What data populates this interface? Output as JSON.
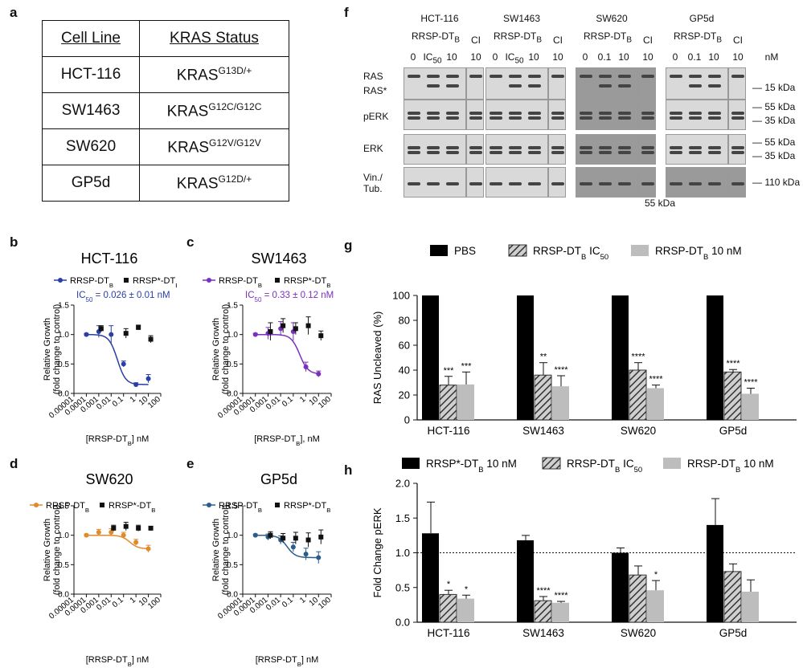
{
  "panels": {
    "a": "a",
    "b": "b",
    "c": "c",
    "d": "d",
    "e": "e",
    "f": "f",
    "g": "g",
    "h": "h"
  },
  "table": {
    "headers": [
      "Cell Line",
      "KRAS Status"
    ],
    "rows": [
      {
        "cell": "HCT-116",
        "status_base": "KRAS",
        "status_sup": "G13D/+"
      },
      {
        "cell": "SW1463",
        "status_base": "KRAS",
        "status_sup": "G12C/G12C"
      },
      {
        "cell": "SW620",
        "status_base": "KRAS",
        "status_sup": "G12V/G12V"
      },
      {
        "cell": "GP5d",
        "status_base": "KRAS",
        "status_sup": "G12D/+"
      }
    ]
  },
  "western": {
    "groups": [
      {
        "cell": "HCT-116",
        "treat": "RRSP-DT",
        "treat_sub": "B",
        "ctrl": "CI",
        "doses": [
          "0",
          "IC50",
          "10"
        ],
        "ctrl_dose": "10"
      },
      {
        "cell": "SW1463",
        "treat": "RRSP-DT",
        "treat_sub": "B",
        "ctrl": "CI",
        "doses": [
          "0",
          "IC50",
          "10"
        ],
        "ctrl_dose": "10"
      },
      {
        "cell": "SW620",
        "treat": "RRSP-DT",
        "treat_sub": "B",
        "ctrl": "CI",
        "doses": [
          "0",
          "0.1",
          "10"
        ],
        "ctrl_dose": "10"
      },
      {
        "cell": "GP5d",
        "treat": "RRSP-DT",
        "treat_sub": "B",
        "ctrl": "CI",
        "doses": [
          "0",
          "0.1",
          "10"
        ],
        "ctrl_dose": "10"
      }
    ],
    "unit": "nM",
    "rows": [
      "RAS",
      "RAS*",
      "pERK",
      "ERK",
      "Vin./",
      "Tub."
    ],
    "markers": [
      "15 kDa",
      "55 kDa",
      "35 kDa",
      "55 kDa",
      "35 kDa",
      "110 kDa",
      "55 kDa"
    ]
  },
  "chart_data": [
    {
      "panel": "b",
      "type": "scatter",
      "title": "HCT-116",
      "legend": [
        "RRSP-DTB",
        "RRSP*-DTB"
      ],
      "annotation": "IC50 = 0.026 ± 0.01 nM",
      "xlabel": "[RRSP-DTB] nM",
      "ylabel": "Relative Growth (fold change to control)",
      "xscale": "log",
      "xlim": [
        1e-05,
        100
      ],
      "ylim": [
        0,
        1.5
      ],
      "xticks": [
        "0.00001",
        "0.0001",
        "0.001",
        "0.01",
        "0.1",
        "1",
        "10",
        "100"
      ],
      "yticks": [
        "0.0",
        "0.5",
        "1.0",
        "1.5"
      ],
      "color": "#2a3ea8",
      "series": [
        {
          "name": "RRSP-DTB",
          "x": [
            0.0001,
            0.001,
            0.01,
            0.1,
            1,
            10
          ],
          "y": [
            1.0,
            1.05,
            1.0,
            0.5,
            0.15,
            0.25
          ],
          "err": [
            0.02,
            0.1,
            0.15,
            0.05,
            0.03,
            0.07
          ]
        },
        {
          "name": "RRSP*-DTB",
          "x": [
            0.001,
            0.1,
            1,
            10
          ],
          "y": [
            1.1,
            1.02,
            1.12,
            0.92
          ],
          "err": [
            0.05,
            0.08,
            0.04,
            0.06
          ]
        }
      ]
    },
    {
      "panel": "c",
      "type": "scatter",
      "title": "SW1463",
      "legend": [
        "RRSP-DTB",
        "RRSP*-DTB"
      ],
      "annotation": "IC50 = 0.33 ± 0.12 nM",
      "xlabel": "[RRSP-DTB], nM",
      "ylabel": "Relative Growth (fold change to control)",
      "xscale": "log",
      "xlim": [
        1e-05,
        100
      ],
      "ylim": [
        0,
        1.5
      ],
      "xticks": [
        "0.00001",
        "0.0001",
        "0.001",
        "0.01",
        "0.1",
        "1",
        "10",
        "100"
      ],
      "yticks": [
        "0.0",
        "0.5",
        "1.0",
        "1.5"
      ],
      "color": "#7a2fbf",
      "series": [
        {
          "name": "RRSP-DTB",
          "x": [
            0.0001,
            0.001,
            0.01,
            0.1,
            1,
            10
          ],
          "y": [
            1.0,
            1.02,
            1.1,
            1.05,
            0.45,
            0.33
          ],
          "err": [
            0.02,
            0.1,
            0.12,
            0.15,
            0.08,
            0.05
          ]
        },
        {
          "name": "RRSP*-DTB",
          "x": [
            0.001,
            0.01,
            0.1,
            1,
            10
          ],
          "y": [
            1.05,
            1.15,
            1.1,
            1.15,
            0.98
          ],
          "err": [
            0.15,
            0.12,
            0.1,
            0.15,
            0.08
          ]
        }
      ]
    },
    {
      "panel": "d",
      "type": "scatter",
      "title": "SW620",
      "legend": [
        "RRSP-DTB",
        "RRSP*-DTB"
      ],
      "xlabel": "[RRSP-DTB] nM",
      "ylabel": "Relative Growth (fold change to control)",
      "xscale": "log",
      "xlim": [
        1e-05,
        100
      ],
      "ylim": [
        0,
        1.5
      ],
      "xticks": [
        "0.00001",
        "0.0001",
        "0.001",
        "0.01",
        "0.1",
        "1",
        "10",
        "100"
      ],
      "yticks": [
        "0.0",
        "0.5",
        "1.0",
        "1.5"
      ],
      "color": "#e08a2c",
      "series": [
        {
          "name": "RRSP-DTB",
          "x": [
            0.0001,
            0.001,
            0.01,
            0.1,
            1,
            10
          ],
          "y": [
            1.0,
            1.05,
            1.05,
            1.0,
            0.88,
            0.77
          ],
          "err": [
            0.02,
            0.05,
            0.06,
            0.05,
            0.05,
            0.06
          ]
        },
        {
          "name": "RRSP*-DTB",
          "x": [
            0.01,
            0.1,
            1,
            10
          ],
          "y": [
            1.12,
            1.15,
            1.12,
            1.12
          ],
          "err": [
            0.05,
            0.07,
            0.05,
            0.03
          ]
        }
      ]
    },
    {
      "panel": "e",
      "type": "scatter",
      "title": "GP5d",
      "legend": [
        "RRSP-DTB",
        "RRSP*-DTB"
      ],
      "xlabel": "[RRSP-DTB] nM",
      "ylabel": "Relative Growth (fold change to control)",
      "xscale": "log",
      "xlim": [
        1e-05,
        100
      ],
      "ylim": [
        0,
        1.5
      ],
      "xticks": [
        "0.00001",
        "0.0001",
        "0.001",
        "0.01",
        "0.1",
        "1",
        "10",
        "100"
      ],
      "yticks": [
        "0.0",
        "0.5",
        "1.0",
        "1.5"
      ],
      "color": "#2a5d8a",
      "series": [
        {
          "name": "RRSP-DTB",
          "x": [
            0.0001,
            0.001,
            0.01,
            0.1,
            1,
            10
          ],
          "y": [
            1.0,
            0.97,
            0.92,
            0.8,
            0.68,
            0.62
          ],
          "err": [
            0.02,
            0.05,
            0.07,
            0.08,
            0.1,
            0.1
          ]
        },
        {
          "name": "RRSP*-DTB",
          "x": [
            0.001,
            0.01,
            0.1,
            1,
            10
          ],
          "y": [
            1.0,
            0.95,
            0.95,
            0.92,
            0.97
          ],
          "err": [
            0.06,
            0.08,
            0.1,
            0.12,
            0.12
          ]
        }
      ]
    },
    {
      "panel": "g",
      "type": "bar",
      "legend": [
        "PBS",
        "RRSP-DTB IC50",
        "RRSP-DTB 10 nM"
      ],
      "ylabel": "RAS Uncleaved (%)",
      "ylim": [
        0,
        100
      ],
      "yticks": [
        "0",
        "20",
        "40",
        "60",
        "80",
        "100"
      ],
      "categories": [
        "HCT-116",
        "SW1463",
        "SW620",
        "GP5d"
      ],
      "series": [
        {
          "name": "PBS",
          "values": [
            100,
            100,
            100,
            100
          ],
          "err": [
            0,
            0,
            0,
            0
          ],
          "sig": [
            "",
            "",
            "",
            ""
          ]
        },
        {
          "name": "RRSP-DTB IC50",
          "values": [
            28,
            36,
            40,
            38.5
          ],
          "err": [
            7,
            10,
            6,
            2
          ],
          "sig": [
            "***",
            "**",
            "****",
            "****"
          ]
        },
        {
          "name": "RRSP-DTB 10 nM",
          "values": [
            28.5,
            27,
            25.5,
            21
          ],
          "err": [
            10,
            8.5,
            2.5,
            4.5
          ],
          "sig": [
            "***",
            "****",
            "****",
            "****"
          ]
        }
      ]
    },
    {
      "panel": "h",
      "type": "bar",
      "legend": [
        "RRSP*-DTB 10 nM",
        "RRSP-DTB IC50",
        "RRSP-DTB 10 nM"
      ],
      "ylabel": "Fold Change pERK",
      "ylim": [
        0,
        2.0
      ],
      "refline": 1.0,
      "yticks": [
        "0.0",
        "0.5",
        "1.0",
        "1.5",
        "2.0"
      ],
      "categories": [
        "HCT-116",
        "SW1463",
        "SW620",
        "GP5d"
      ],
      "series": [
        {
          "name": "RRSP*-DTB 10 nM",
          "values": [
            1.28,
            1.18,
            1.0,
            1.4
          ],
          "err": [
            0.45,
            0.07,
            0.07,
            0.38
          ],
          "sig": [
            "",
            "",
            "",
            ""
          ]
        },
        {
          "name": "RRSP-DTB IC50",
          "values": [
            0.4,
            0.31,
            0.68,
            0.73
          ],
          "err": [
            0.06,
            0.06,
            0.13,
            0.11
          ],
          "sig": [
            "*",
            "****",
            "",
            ""
          ]
        },
        {
          "name": "RRSP-DTB 10 nM",
          "values": [
            0.34,
            0.28,
            0.46,
            0.44
          ],
          "err": [
            0.05,
            0.02,
            0.14,
            0.17
          ],
          "sig": [
            "*",
            "****",
            "*",
            ""
          ]
        }
      ]
    }
  ]
}
